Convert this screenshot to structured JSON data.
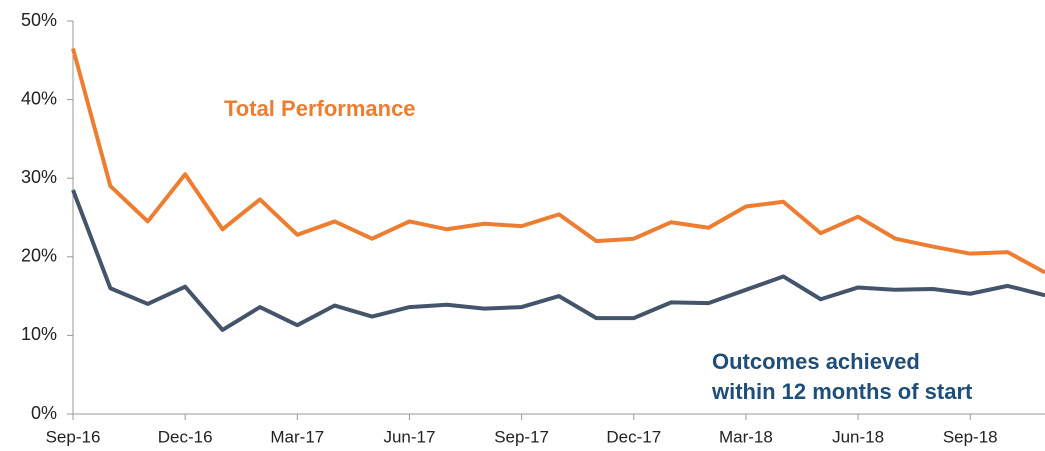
{
  "chart_data": {
    "type": "line",
    "categories": [
      "Sep-16",
      null,
      null,
      "Dec-16",
      null,
      null,
      "Mar-17",
      null,
      null,
      "Jun-17",
      null,
      null,
      "Sep-17",
      null,
      null,
      "Dec-17",
      null,
      null,
      "Mar-18",
      null,
      null,
      "Jun-18",
      null,
      null,
      "Sep-18",
      null,
      null
    ],
    "series": [
      {
        "color": "#ED7D31",
        "values": [
          46.5,
          29,
          24.5,
          30.5,
          23.5,
          27.3,
          22.8,
          24.5,
          22.3,
          24.5,
          23.5,
          24.2,
          23.9,
          25.4,
          22,
          22.3,
          24.4,
          23.7,
          26.4,
          27,
          23,
          25.1,
          22.3,
          21.3,
          20.4,
          20.6,
          18
        ]
      },
      {
        "color": "#44546A",
        "values": [
          28.5,
          16,
          14,
          16.2,
          10.7,
          13.6,
          11.3,
          13.8,
          12.4,
          13.6,
          13.9,
          13.4,
          13.6,
          15,
          12.2,
          12.2,
          14.2,
          14.1,
          15.8,
          17.5,
          14.6,
          16.1,
          15.8,
          15.9,
          15.3,
          16.3,
          15.1
        ]
      }
    ],
    "annotations": [
      {
        "lines": [
          "Total Performance"
        ],
        "color": "#ED7D31"
      },
      {
        "lines": [
          "Outcomes achieved",
          "within  12 months of start"
        ],
        "color": "#1F4E79"
      }
    ],
    "ylim": [
      0,
      50
    ],
    "yticks": [
      {
        "value": 0,
        "label": "0%"
      },
      {
        "value": 10,
        "label": "10%"
      },
      {
        "value": 20,
        "label": "20%"
      },
      {
        "value": 30,
        "label": "30%"
      },
      {
        "value": 40,
        "label": "40%"
      },
      {
        "value": 50,
        "label": "50%"
      }
    ],
    "grid": false
  }
}
